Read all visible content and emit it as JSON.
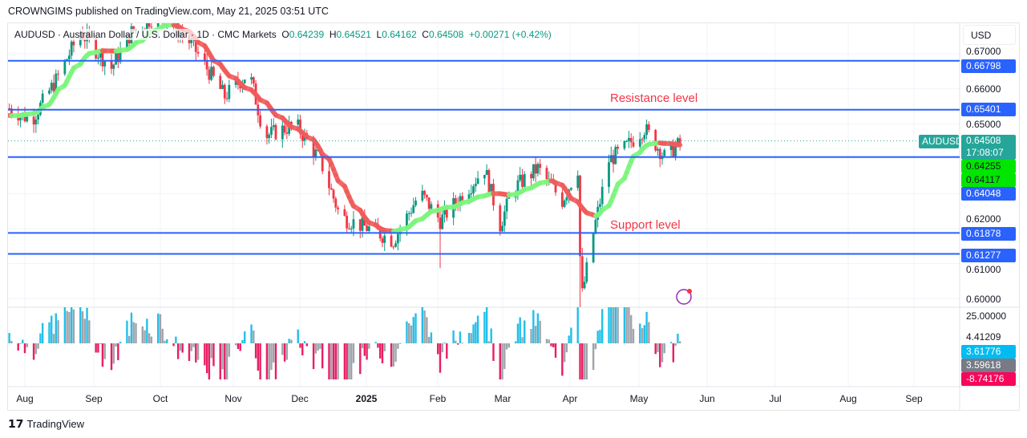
{
  "publisher": "CROWNGIMS published on TradingView.com, May 21, 2025 03:51 UTC",
  "legend": {
    "symbol": "AUDUSD · Australian Dollar / U.S. Dollar · 1D · CMC Markets",
    "o_label": "O",
    "o": "0.64239",
    "h_label": "H",
    "h": "0.64521",
    "l_label": "L",
    "l": "0.64162",
    "c_label": "C",
    "c": "0.64508",
    "change": "+0.00271 (+0.42%)"
  },
  "currency": "USD",
  "annotations": {
    "resistance": "Resistance level",
    "support": "Support level"
  },
  "price_axis": [
    "0.67000",
    "0.66000",
    "0.65000",
    "0.62000",
    "0.61000",
    "0.60000"
  ],
  "levels": [
    {
      "value": "0.66798",
      "color": "#2962ff"
    },
    {
      "value": "0.65401",
      "color": "#2962ff"
    },
    {
      "value": "0.64048",
      "color": "#2962ff"
    },
    {
      "value": "0.61878",
      "color": "#2962ff"
    },
    {
      "value": "0.61277",
      "color": "#2962ff"
    }
  ],
  "last_price": {
    "symbol": "AUDUSD",
    "value": "0.64508",
    "countdown": "17:08:07",
    "color": "#26a69a"
  },
  "ma_tags": [
    "0.64255",
    "0.64117"
  ],
  "indicator_axis": {
    "top": "25.00000",
    "value": "4.41209",
    "tags": [
      {
        "value": "3.61776",
        "color": "#00bcf2"
      },
      {
        "value": "3.59618",
        "color": "#787b86"
      },
      {
        "value": "-8.74176",
        "color": "#f7075b"
      }
    ]
  },
  "time_axis": [
    "Aug",
    "Sep",
    "Oct",
    "Nov",
    "Dec",
    "2025",
    "Feb",
    "Mar",
    "Apr",
    "May",
    "Jun",
    "Jul",
    "Aug",
    "Sep"
  ],
  "footer": "TradingView",
  "chart_data": {
    "type": "candlestick",
    "symbol": "AUDUSD",
    "timeframe": "1D",
    "start": "2024-07-25",
    "key_closes": [
      [
        -7,
        0.6544
      ],
      [
        3,
        0.651
      ],
      [
        14,
        0.6624
      ],
      [
        25,
        0.6762
      ],
      [
        39,
        0.6659
      ],
      [
        48,
        0.6762
      ],
      [
        61,
        0.6819
      ],
      [
        75,
        0.6728
      ],
      [
        90,
        0.6578
      ],
      [
        101,
        0.6647
      ],
      [
        108,
        0.6464
      ],
      [
        122,
        0.6498
      ],
      [
        133,
        0.6395
      ],
      [
        142,
        0.6234
      ],
      [
        155,
        0.62
      ],
      [
        166,
        0.6166
      ],
      [
        178,
        0.6303
      ],
      [
        187,
        0.6223
      ],
      [
        198,
        0.6303
      ],
      [
        207,
        0.6372
      ],
      [
        214,
        0.6211
      ],
      [
        220,
        0.6315
      ],
      [
        231,
        0.6372
      ],
      [
        242,
        0.628
      ],
      [
        249,
        0.6372
      ],
      [
        250.5,
        0.5995
      ],
      [
        256,
        0.6189
      ],
      [
        263,
        0.6395
      ],
      [
        270,
        0.6429
      ],
      [
        279,
        0.6487
      ],
      [
        288,
        0.6406
      ],
      [
        296,
        0.6448
      ]
    ],
    "ylim": [
      0.597,
      0.684
    ]
  }
}
